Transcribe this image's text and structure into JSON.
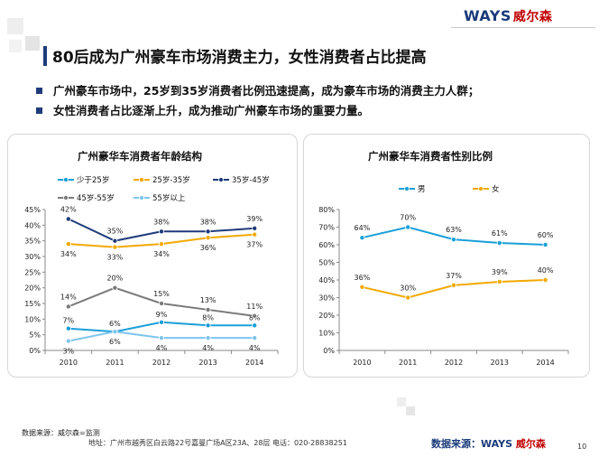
{
  "header": {
    "logo_brand": "WAYS",
    "logo_cn": "威尔森"
  },
  "title": "80后成为广州豪车市场消费主力，女性消费者占比提高",
  "bullets": [
    "广州豪车市场中，25岁到35岁消费者比例迅速提高，成为豪车市场的消费主力人群；",
    "女性消费者占比逐渐上升，成为推动广州豪车市场的重要力量。"
  ],
  "colors": {
    "accent": "#1f3b7a",
    "series_cyan": "#1a9fd8",
    "series_orange": "#f2a900",
    "series_navy": "#1f3b7a",
    "series_gray": "#7a7a7a",
    "series_lightblue": "#7fc6ee"
  },
  "chart_data": [
    {
      "type": "line",
      "title": "广州豪华车消费者年龄结构",
      "x": [
        "2010",
        "2011",
        "2012",
        "2013",
        "2014"
      ],
      "ylim": [
        0,
        45
      ],
      "ytick_labels": [
        "0%",
        "5%",
        "10%",
        "15%",
        "20%",
        "25%",
        "30%",
        "35%",
        "40%",
        "45%"
      ],
      "legend_position": "top",
      "grid": false,
      "series": [
        {
          "name": "少于25岁",
          "values": [
            7,
            6,
            9,
            8,
            8
          ],
          "labels": [
            "7%",
            "6%",
            "9%",
            "8%",
            "8%"
          ],
          "color": "#1a9fd8"
        },
        {
          "name": "25岁-35岁",
          "values": [
            34,
            33,
            34,
            36,
            37
          ],
          "labels": [
            "34%",
            "33%",
            "34%",
            "36%",
            "37%"
          ],
          "color": "#f2a900"
        },
        {
          "name": "35岁-45岁",
          "values": [
            42,
            35,
            38,
            38,
            39
          ],
          "labels": [
            "42%",
            "35%",
            "38%",
            "38%",
            "39%"
          ],
          "color": "#1f3b7a"
        },
        {
          "name": "45岁-55岁",
          "values": [
            14,
            20,
            15,
            13,
            11
          ],
          "labels": [
            "14%",
            "20%",
            "15%",
            "13%",
            "11%"
          ],
          "color": "#7a7a7a"
        },
        {
          "name": "55岁以上",
          "values": [
            3,
            6,
            4,
            4,
            4
          ],
          "labels": [
            "3%",
            "6%",
            "4%",
            "4%",
            "4%"
          ],
          "color": "#7fc6ee"
        }
      ]
    },
    {
      "type": "line",
      "title": "广州豪华车消费者性别比例",
      "x": [
        "2010",
        "2011",
        "2012",
        "2013",
        "2014"
      ],
      "ylim": [
        0,
        80
      ],
      "ytick_labels": [
        "0%",
        "10%",
        "20%",
        "30%",
        "40%",
        "50%",
        "60%",
        "70%",
        "80%"
      ],
      "legend_position": "top",
      "grid": false,
      "series": [
        {
          "name": "男",
          "values": [
            64,
            70,
            63,
            61,
            60
          ],
          "labels": [
            "64%",
            "70%",
            "63%",
            "61%",
            "60%"
          ],
          "color": "#1a9fd8"
        },
        {
          "name": "女",
          "values": [
            36,
            30,
            37,
            39,
            40
          ],
          "labels": [
            "36%",
            "30%",
            "37%",
            "39%",
            "40%"
          ],
          "color": "#f2a900"
        }
      ]
    }
  ],
  "footer": {
    "source_left": "数据来源：威尔森=监测",
    "address": "地址：广州市越秀区白云路22号嘉曼广场A区23A、28层   电话：020-28838251",
    "source_right_label": "数据来源：",
    "page_number": "10"
  }
}
